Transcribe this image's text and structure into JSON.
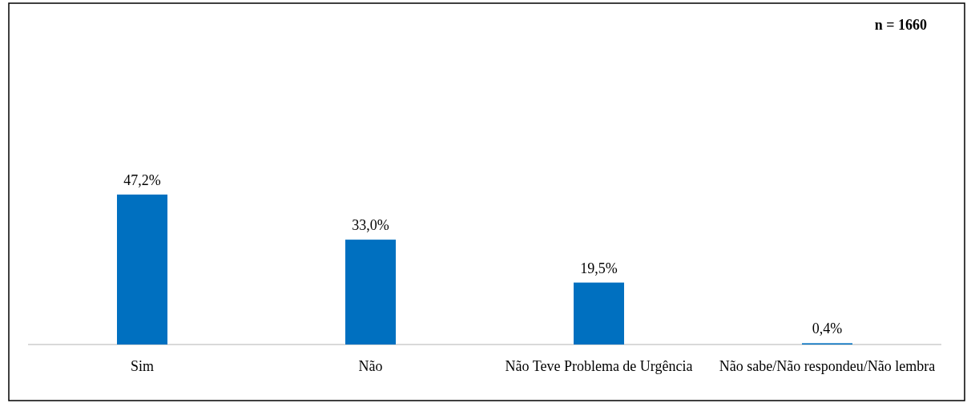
{
  "chart_data": {
    "type": "bar",
    "categories": [
      "Sim",
      "Não",
      "Não Teve Problema de Urgência",
      "Não sabe/Não respondeu/Não lembra"
    ],
    "values": [
      47.2,
      33.0,
      19.5,
      0.4
    ],
    "value_labels": [
      "47,2%",
      "33,0%",
      "19,5%",
      "0,4%"
    ],
    "color": "#0070c0",
    "annotations": [
      "n = 1660"
    ]
  }
}
